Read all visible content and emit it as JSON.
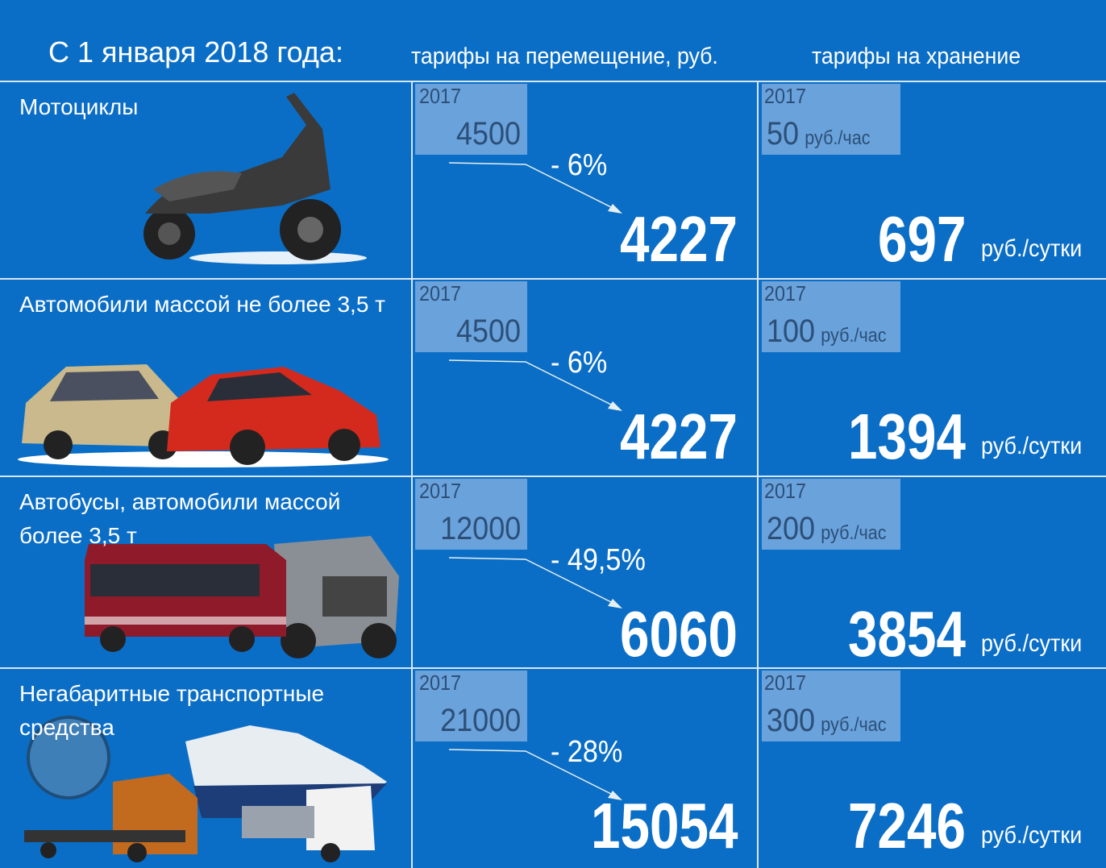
{
  "header": {
    "title": "С 1 января 2018 года:",
    "move_heading": "тарифы на перемещение, руб.",
    "storage_heading": "тарифы на хранение"
  },
  "rows": [
    {
      "label": "Мотоциклы",
      "move": {
        "year": "2017",
        "old": 4500,
        "change": "- 6%",
        "new": 4227
      },
      "storage": {
        "year": "2017",
        "old": 50,
        "old_unit": "руб./час",
        "new": 697,
        "new_unit": "руб./сутки"
      }
    },
    {
      "label": "Автомобили массой не более 3,5 т",
      "move": {
        "year": "2017",
        "old": 4500,
        "change": "- 6%",
        "new": 4227
      },
      "storage": {
        "year": "2017",
        "old": 100,
        "old_unit": "руб./час",
        "new": 1394,
        "new_unit": "руб./сутки"
      }
    },
    {
      "label": "Автобусы, автомобили массой более 3,5 т",
      "move": {
        "year": "2017",
        "old": 12000,
        "change": "- 49,5%",
        "new": 6060
      },
      "storage": {
        "year": "2017",
        "old": 200,
        "old_unit": "руб./час",
        "new": 3854,
        "new_unit": "руб./сутки"
      }
    },
    {
      "label": "Негабаритные транспортные средства",
      "move": {
        "year": "2017",
        "old": 21000,
        "change": "- 28%",
        "new": 15054
      },
      "storage": {
        "year": "2017",
        "old": 300,
        "old_unit": "руб./час",
        "new": 7246,
        "new_unit": "руб./сутки"
      }
    }
  ]
}
